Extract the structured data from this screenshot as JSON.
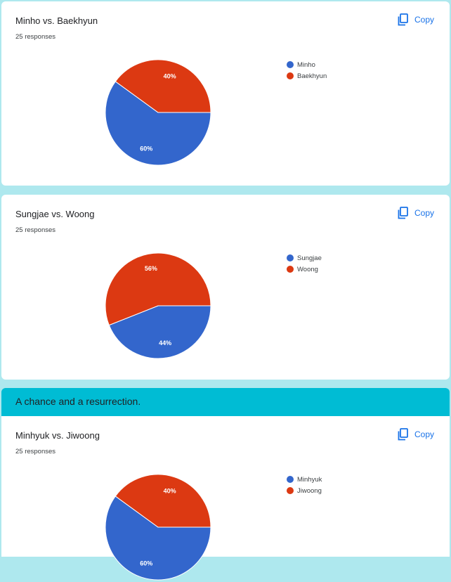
{
  "copy_label": "Copy",
  "section": {
    "title": "A chance and a resurrection."
  },
  "colors": {
    "blue": "#3366cc",
    "red": "#dc3912",
    "accent": "#1a73e8",
    "section": "#00bcd4"
  },
  "questions": [
    {
      "title": "Minho vs. Baekhyun",
      "responses": "25 responses",
      "chart_data": {
        "type": "pie",
        "categories": [
          "Minho",
          "Baekhyun"
        ],
        "values": [
          60,
          40
        ],
        "labels": [
          "60%",
          "40%"
        ]
      }
    },
    {
      "title": "Sungjae vs. Woong",
      "responses": "25 responses",
      "chart_data": {
        "type": "pie",
        "categories": [
          "Sungjae",
          "Woong"
        ],
        "values": [
          44,
          56
        ],
        "labels": [
          "44%",
          "56%"
        ]
      }
    },
    {
      "title": "Minhyuk vs. Jiwoong",
      "responses": "25 responses",
      "chart_data": {
        "type": "pie",
        "categories": [
          "Minhyuk",
          "Jiwoong"
        ],
        "values": [
          60,
          40
        ],
        "labels": [
          "60%",
          "40%"
        ]
      }
    }
  ]
}
